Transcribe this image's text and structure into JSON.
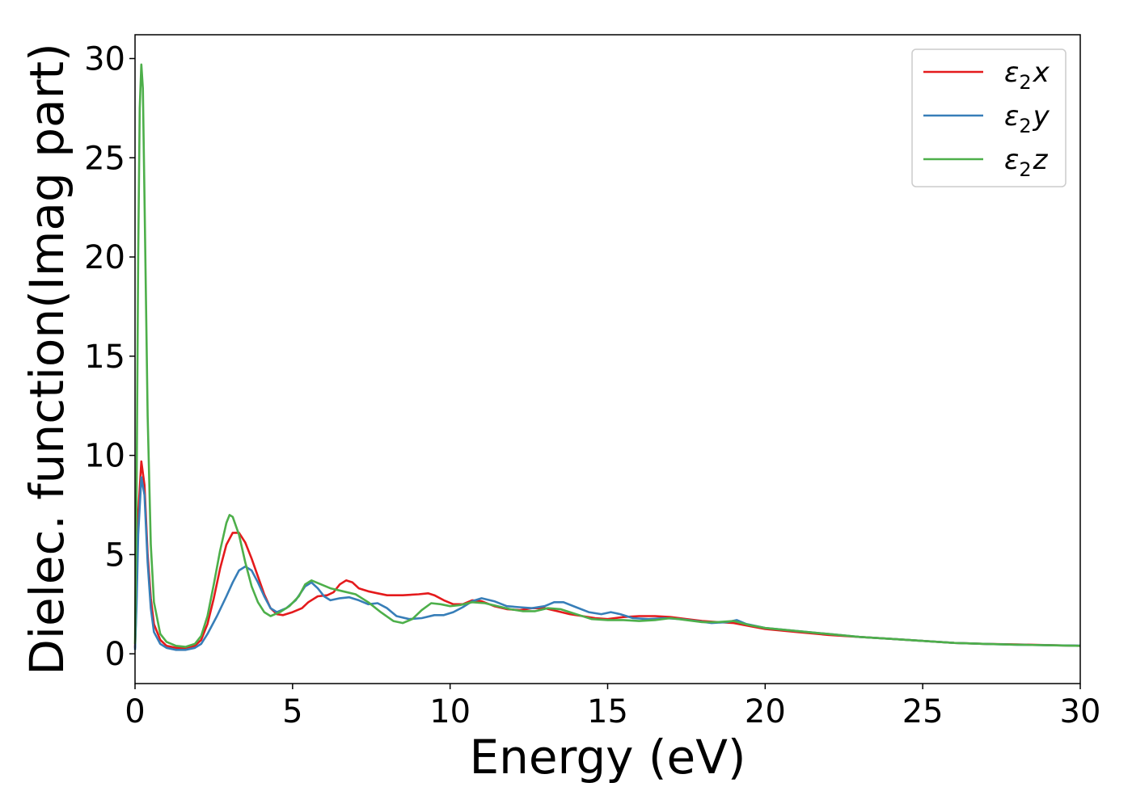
{
  "chart_data": {
    "type": "line",
    "title": "",
    "xlabel": "Energy (eV)",
    "ylabel": "Dielec. function(Imag part)",
    "xlim": [
      0,
      30
    ],
    "ylim": [
      -1.5,
      31.2
    ],
    "xticks": [
      0,
      5,
      10,
      15,
      20,
      25,
      30
    ],
    "yticks": [
      0,
      5,
      10,
      15,
      20,
      25,
      30
    ],
    "grid": false,
    "legend_position": "top-right",
    "series": [
      {
        "name": "ε2x",
        "legend_main": "ε",
        "legend_sub": "2",
        "legend_tail": "x",
        "color": "#e41a1c",
        "points": [
          [
            0,
            0.3
          ],
          [
            0.05,
            3.0
          ],
          [
            0.1,
            7.0
          ],
          [
            0.2,
            9.7
          ],
          [
            0.3,
            8.5
          ],
          [
            0.4,
            5.0
          ],
          [
            0.5,
            2.8
          ],
          [
            0.6,
            1.5
          ],
          [
            0.8,
            0.7
          ],
          [
            1.0,
            0.4
          ],
          [
            1.3,
            0.3
          ],
          [
            1.6,
            0.3
          ],
          [
            1.9,
            0.4
          ],
          [
            2.1,
            0.7
          ],
          [
            2.3,
            1.5
          ],
          [
            2.5,
            2.8
          ],
          [
            2.7,
            4.3
          ],
          [
            2.9,
            5.5
          ],
          [
            3.1,
            6.1
          ],
          [
            3.3,
            6.1
          ],
          [
            3.5,
            5.6
          ],
          [
            3.7,
            4.8
          ],
          [
            3.9,
            3.9
          ],
          [
            4.1,
            3.0
          ],
          [
            4.3,
            2.3
          ],
          [
            4.5,
            2.0
          ],
          [
            4.7,
            1.95
          ],
          [
            5.0,
            2.1
          ],
          [
            5.3,
            2.3
          ],
          [
            5.5,
            2.6
          ],
          [
            5.8,
            2.9
          ],
          [
            6.1,
            2.95
          ],
          [
            6.3,
            3.1
          ],
          [
            6.5,
            3.5
          ],
          [
            6.7,
            3.7
          ],
          [
            6.9,
            3.6
          ],
          [
            7.1,
            3.3
          ],
          [
            7.4,
            3.15
          ],
          [
            7.7,
            3.05
          ],
          [
            8.0,
            2.95
          ],
          [
            8.5,
            2.95
          ],
          [
            9.0,
            3.0
          ],
          [
            9.3,
            3.05
          ],
          [
            9.5,
            2.95
          ],
          [
            9.8,
            2.7
          ],
          [
            10.1,
            2.5
          ],
          [
            10.4,
            2.5
          ],
          [
            10.7,
            2.7
          ],
          [
            11.0,
            2.65
          ],
          [
            11.4,
            2.4
          ],
          [
            11.8,
            2.25
          ],
          [
            12.2,
            2.2
          ],
          [
            12.6,
            2.3
          ],
          [
            13.0,
            2.3
          ],
          [
            13.4,
            2.15
          ],
          [
            13.8,
            2.0
          ],
          [
            14.2,
            1.9
          ],
          [
            14.6,
            1.8
          ],
          [
            15.0,
            1.75
          ],
          [
            15.5,
            1.85
          ],
          [
            16.0,
            1.9
          ],
          [
            16.5,
            1.9
          ],
          [
            17.0,
            1.85
          ],
          [
            17.5,
            1.75
          ],
          [
            18.0,
            1.65
          ],
          [
            18.5,
            1.6
          ],
          [
            19.0,
            1.55
          ],
          [
            19.5,
            1.4
          ],
          [
            20.0,
            1.25
          ],
          [
            21.0,
            1.1
          ],
          [
            22.0,
            0.95
          ],
          [
            23.0,
            0.85
          ],
          [
            24.0,
            0.75
          ],
          [
            25.0,
            0.65
          ],
          [
            26.0,
            0.55
          ],
          [
            27.0,
            0.5
          ],
          [
            28.0,
            0.47
          ],
          [
            29.0,
            0.44
          ],
          [
            30.0,
            0.4
          ]
        ]
      },
      {
        "name": "ε2y",
        "legend_main": "ε",
        "legend_sub": "2",
        "legend_tail": "y",
        "color": "#377eb8",
        "points": [
          [
            0,
            0.2
          ],
          [
            0.05,
            2.5
          ],
          [
            0.1,
            6.0
          ],
          [
            0.2,
            8.9
          ],
          [
            0.3,
            8.0
          ],
          [
            0.4,
            4.6
          ],
          [
            0.5,
            2.3
          ],
          [
            0.6,
            1.1
          ],
          [
            0.8,
            0.5
          ],
          [
            1.0,
            0.3
          ],
          [
            1.3,
            0.2
          ],
          [
            1.6,
            0.2
          ],
          [
            1.9,
            0.3
          ],
          [
            2.1,
            0.5
          ],
          [
            2.3,
            1.0
          ],
          [
            2.6,
            1.9
          ],
          [
            2.9,
            2.9
          ],
          [
            3.1,
            3.6
          ],
          [
            3.3,
            4.2
          ],
          [
            3.5,
            4.4
          ],
          [
            3.7,
            4.2
          ],
          [
            3.9,
            3.6
          ],
          [
            4.1,
            2.9
          ],
          [
            4.3,
            2.3
          ],
          [
            4.5,
            2.1
          ],
          [
            4.8,
            2.3
          ],
          [
            5.1,
            2.7
          ],
          [
            5.4,
            3.4
          ],
          [
            5.6,
            3.6
          ],
          [
            5.8,
            3.3
          ],
          [
            6.0,
            2.9
          ],
          [
            6.2,
            2.7
          ],
          [
            6.5,
            2.8
          ],
          [
            6.8,
            2.85
          ],
          [
            7.1,
            2.7
          ],
          [
            7.4,
            2.5
          ],
          [
            7.7,
            2.55
          ],
          [
            8.0,
            2.3
          ],
          [
            8.3,
            1.9
          ],
          [
            8.7,
            1.75
          ],
          [
            9.1,
            1.8
          ],
          [
            9.5,
            1.95
          ],
          [
            9.8,
            1.95
          ],
          [
            10.1,
            2.1
          ],
          [
            10.4,
            2.35
          ],
          [
            10.7,
            2.65
          ],
          [
            11.0,
            2.8
          ],
          [
            11.4,
            2.65
          ],
          [
            11.8,
            2.4
          ],
          [
            12.2,
            2.35
          ],
          [
            12.6,
            2.3
          ],
          [
            13.0,
            2.4
          ],
          [
            13.3,
            2.6
          ],
          [
            13.6,
            2.6
          ],
          [
            14.0,
            2.35
          ],
          [
            14.4,
            2.1
          ],
          [
            14.8,
            2.0
          ],
          [
            15.1,
            2.1
          ],
          [
            15.4,
            2.0
          ],
          [
            15.8,
            1.8
          ],
          [
            16.3,
            1.75
          ],
          [
            16.8,
            1.8
          ],
          [
            17.3,
            1.75
          ],
          [
            17.8,
            1.65
          ],
          [
            18.3,
            1.55
          ],
          [
            18.8,
            1.6
          ],
          [
            19.1,
            1.7
          ],
          [
            19.4,
            1.5
          ],
          [
            20.0,
            1.3
          ],
          [
            21.0,
            1.15
          ],
          [
            22.0,
            1.0
          ],
          [
            23.0,
            0.85
          ],
          [
            24.0,
            0.75
          ],
          [
            25.0,
            0.65
          ],
          [
            26.0,
            0.55
          ],
          [
            27.0,
            0.5
          ],
          [
            28.0,
            0.46
          ],
          [
            29.0,
            0.43
          ],
          [
            30.0,
            0.41
          ]
        ]
      },
      {
        "name": "ε2z",
        "legend_main": "ε",
        "legend_sub": "2",
        "legend_tail": "z",
        "color": "#4daf4a",
        "points": [
          [
            0,
            0.5
          ],
          [
            0.05,
            8.0
          ],
          [
            0.1,
            20.0
          ],
          [
            0.15,
            27.5
          ],
          [
            0.2,
            29.7
          ],
          [
            0.25,
            28.5
          ],
          [
            0.3,
            23.0
          ],
          [
            0.4,
            12.0
          ],
          [
            0.5,
            5.5
          ],
          [
            0.6,
            2.6
          ],
          [
            0.8,
            1.0
          ],
          [
            1.0,
            0.6
          ],
          [
            1.3,
            0.4
          ],
          [
            1.6,
            0.35
          ],
          [
            1.9,
            0.5
          ],
          [
            2.1,
            0.9
          ],
          [
            2.3,
            1.9
          ],
          [
            2.5,
            3.5
          ],
          [
            2.7,
            5.2
          ],
          [
            2.9,
            6.6
          ],
          [
            3.0,
            7.0
          ],
          [
            3.1,
            6.9
          ],
          [
            3.3,
            6.0
          ],
          [
            3.5,
            4.6
          ],
          [
            3.7,
            3.4
          ],
          [
            3.9,
            2.6
          ],
          [
            4.1,
            2.1
          ],
          [
            4.3,
            1.9
          ],
          [
            4.6,
            2.1
          ],
          [
            4.9,
            2.4
          ],
          [
            5.2,
            2.9
          ],
          [
            5.4,
            3.5
          ],
          [
            5.6,
            3.7
          ],
          [
            5.9,
            3.5
          ],
          [
            6.2,
            3.3
          ],
          [
            6.6,
            3.15
          ],
          [
            7.0,
            3.0
          ],
          [
            7.4,
            2.6
          ],
          [
            7.8,
            2.1
          ],
          [
            8.2,
            1.65
          ],
          [
            8.5,
            1.55
          ],
          [
            8.8,
            1.75
          ],
          [
            9.1,
            2.2
          ],
          [
            9.4,
            2.55
          ],
          [
            9.7,
            2.5
          ],
          [
            10.0,
            2.4
          ],
          [
            10.3,
            2.45
          ],
          [
            10.7,
            2.6
          ],
          [
            11.1,
            2.55
          ],
          [
            11.5,
            2.4
          ],
          [
            11.9,
            2.25
          ],
          [
            12.3,
            2.15
          ],
          [
            12.7,
            2.15
          ],
          [
            13.1,
            2.3
          ],
          [
            13.5,
            2.25
          ],
          [
            14.0,
            2.0
          ],
          [
            14.5,
            1.75
          ],
          [
            15.0,
            1.7
          ],
          [
            15.5,
            1.7
          ],
          [
            16.0,
            1.65
          ],
          [
            16.5,
            1.7
          ],
          [
            17.0,
            1.8
          ],
          [
            17.5,
            1.7
          ],
          [
            18.0,
            1.6
          ],
          [
            18.5,
            1.6
          ],
          [
            19.0,
            1.65
          ],
          [
            19.5,
            1.45
          ],
          [
            20.0,
            1.3
          ],
          [
            21.0,
            1.15
          ],
          [
            22.0,
            1.0
          ],
          [
            23.0,
            0.85
          ],
          [
            24.0,
            0.75
          ],
          [
            25.0,
            0.65
          ],
          [
            26.0,
            0.55
          ],
          [
            27.0,
            0.5
          ],
          [
            28.0,
            0.46
          ],
          [
            29.0,
            0.43
          ],
          [
            30.0,
            0.4
          ]
        ]
      }
    ]
  }
}
